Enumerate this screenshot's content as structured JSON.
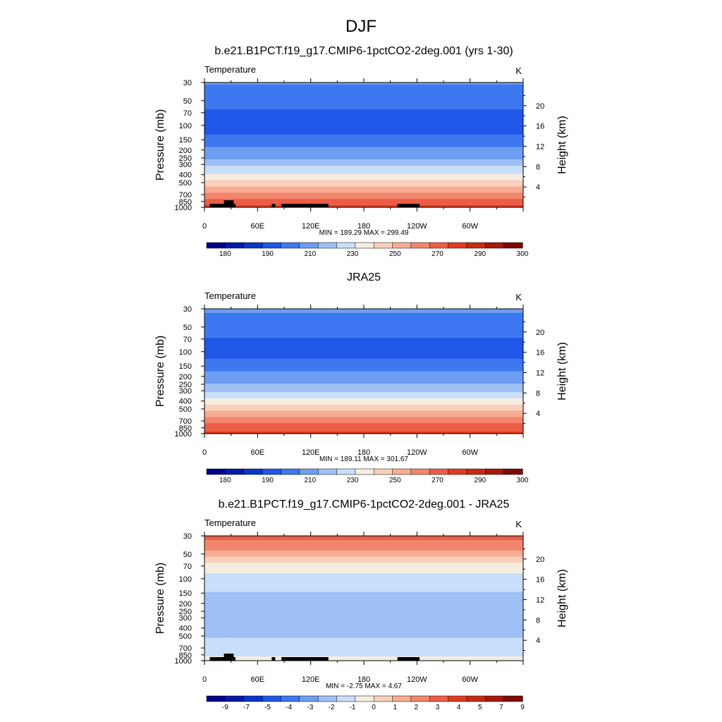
{
  "figure": {
    "title": "DJF"
  },
  "chart_data": [
    {
      "type": "heatmap",
      "title": "b.e21.B1PCT.f19_g17.CMIP6-1pctCO2-2deg.001 (yrs 1-30)",
      "left_label": "Temperature",
      "units": "K",
      "ylabel": "Pressure (mb)",
      "y2label": "Height (km)",
      "x_ticks": [
        "0",
        "60E",
        "120E",
        "180",
        "120W",
        "60W"
      ],
      "x_tick_values": [
        0,
        60,
        120,
        180,
        240,
        300
      ],
      "xlim": [
        0,
        360
      ],
      "y_ticks": [
        "30",
        "50",
        "70",
        "100",
        "150",
        "200",
        "250",
        "300",
        "400",
        "500",
        "700",
        "850",
        "1000"
      ],
      "y_tick_values": [
        30,
        50,
        70,
        100,
        150,
        200,
        250,
        300,
        400,
        500,
        700,
        850,
        1000
      ],
      "ylim": [
        1000,
        30
      ],
      "y_scale": "log",
      "height_ticks": [
        "4",
        "8",
        "12",
        "16",
        "20"
      ],
      "height_tick_values": [
        4,
        8,
        12,
        16,
        20
      ],
      "stats": "MIN = 189.29  MAX = 299.49",
      "min": 189.29,
      "max": 299.49,
      "levels": [
        30,
        50,
        70,
        100,
        150,
        200,
        250,
        300,
        400,
        500,
        700,
        850,
        1000
      ],
      "level_values": [
        211,
        204,
        199,
        196,
        203,
        212,
        219,
        227,
        242,
        254,
        273,
        284,
        292
      ],
      "colorbar_labels": [
        "180",
        "190",
        "210",
        "230",
        "250",
        "270",
        "290",
        "300"
      ],
      "contour_levels": [
        175,
        180,
        185,
        190,
        200,
        210,
        220,
        230,
        240,
        250,
        260,
        270,
        280,
        290,
        295,
        300,
        305
      ],
      "masked": true
    },
    {
      "type": "heatmap",
      "title": "JRA25",
      "left_label": "Temperature",
      "units": "K",
      "ylabel": "Pressure (mb)",
      "y2label": "Height (km)",
      "x_ticks": [
        "0",
        "60E",
        "120E",
        "180",
        "120W",
        "60W"
      ],
      "x_tick_values": [
        0,
        60,
        120,
        180,
        240,
        300
      ],
      "xlim": [
        0,
        360
      ],
      "y_ticks": [
        "30",
        "50",
        "70",
        "100",
        "150",
        "200",
        "250",
        "300",
        "400",
        "500",
        "700",
        "850",
        "1000"
      ],
      "y_tick_values": [
        30,
        50,
        70,
        100,
        150,
        200,
        250,
        300,
        400,
        500,
        700,
        850,
        1000
      ],
      "ylim": [
        1000,
        30
      ],
      "y_scale": "log",
      "height_ticks": [
        "4",
        "8",
        "12",
        "16",
        "20"
      ],
      "height_tick_values": [
        4,
        8,
        12,
        16,
        20
      ],
      "stats": "MIN = 189.11  MAX = 301.67",
      "min": 189.11,
      "max": 301.67,
      "levels": [
        30,
        50,
        70,
        100,
        150,
        200,
        250,
        300,
        400,
        500,
        700,
        850,
        1000
      ],
      "level_values": [
        212,
        205,
        199,
        196,
        204,
        214,
        221,
        229,
        244,
        256,
        275,
        286,
        294
      ],
      "colorbar_labels": [
        "180",
        "190",
        "210",
        "230",
        "250",
        "270",
        "290",
        "300"
      ],
      "contour_levels": [
        175,
        180,
        185,
        190,
        200,
        210,
        220,
        230,
        240,
        250,
        260,
        270,
        280,
        290,
        295,
        300,
        305
      ],
      "masked": false
    },
    {
      "type": "heatmap",
      "title": "b.e21.B1PCT.f19_g17.CMIP6-1pctCO2-2deg.001 - JRA25",
      "left_label": "Temperature",
      "units": "K",
      "ylabel": "Pressure (mb)",
      "y2label": "Height (km)",
      "x_ticks": [
        "0",
        "60E",
        "120E",
        "180",
        "120W",
        "60W"
      ],
      "x_tick_values": [
        0,
        60,
        120,
        180,
        240,
        300
      ],
      "xlim": [
        0,
        360
      ],
      "y_ticks": [
        "30",
        "50",
        "70",
        "100",
        "150",
        "200",
        "250",
        "300",
        "400",
        "500",
        "700",
        "850",
        "1000"
      ],
      "y_tick_values": [
        30,
        50,
        70,
        100,
        150,
        200,
        250,
        300,
        400,
        500,
        700,
        850,
        1000
      ],
      "ylim": [
        1000,
        30
      ],
      "y_scale": "log",
      "height_ticks": [
        "4",
        "8",
        "12",
        "16",
        "20"
      ],
      "height_tick_values": [
        4,
        8,
        12,
        16,
        20
      ],
      "stats": "MIN = -2.75  MAX =  4.67",
      "min": -2.75,
      "max": 4.67,
      "levels": [
        30,
        50,
        70,
        100,
        150,
        200,
        250,
        300,
        400,
        500,
        700,
        850,
        1000
      ],
      "level_values": [
        4.6,
        2.5,
        0.4,
        -0.3,
        -1.1,
        -1.6,
        -2.0,
        -1.9,
        -1.6,
        -1.1,
        -0.6,
        -0.2,
        0.4
      ],
      "colorbar_labels": [
        "-9",
        "-7",
        "-5",
        "-4",
        "-3",
        "-2",
        "-1",
        "0",
        "1",
        "2",
        "3",
        "4",
        "5",
        "7",
        "9"
      ],
      "contour_levels": [
        -11,
        -9,
        -7,
        -5,
        -4,
        -3,
        -2,
        -1,
        0,
        1,
        2,
        3,
        4,
        5,
        7,
        9,
        11
      ],
      "masked": true
    }
  ],
  "colorbar_colors": [
    "#00008b",
    "#0019a6",
    "#0a34c8",
    "#1f57e8",
    "#3d78f0",
    "#6e9ef2",
    "#9fc0f5",
    "#c8defa",
    "#f5eee0",
    "#f9d0bb",
    "#f6ad92",
    "#f1866c",
    "#ec5d47",
    "#e23a20",
    "#c92a10",
    "#a5190a",
    "#7d0a05"
  ],
  "mask_color": "#000000"
}
